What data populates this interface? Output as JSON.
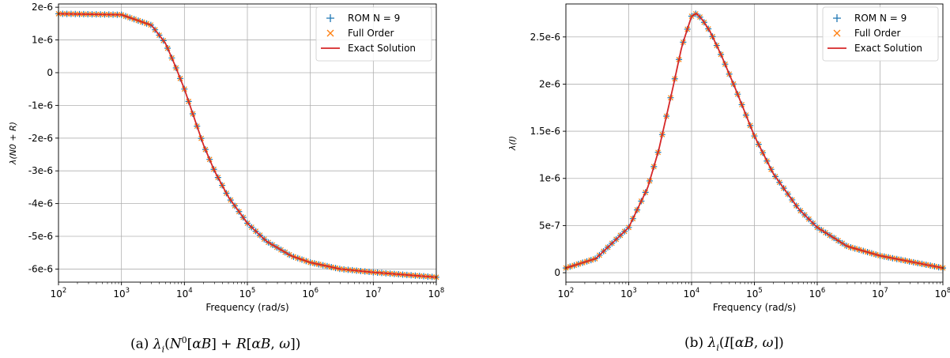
{
  "colors": {
    "rom": "#1f77b4",
    "full": "#ff7f0e",
    "exact": "#d62728"
  },
  "chart_data": [
    {
      "type": "line",
      "caption": "(a) λi(N0[αB] + R[αB, ω])",
      "xlabel": "Frequency (rad/s)",
      "ylabel": "λ(N0 + R)",
      "xscale": "log",
      "xlim": [
        100,
        100000000
      ],
      "ylim": [
        -6.4e-06,
        2.1e-06
      ],
      "grid": true,
      "legend_position": "top-right",
      "x_ticks": [
        {
          "value": 100,
          "base": "10",
          "exp": "2"
        },
        {
          "value": 1000,
          "base": "10",
          "exp": "3"
        },
        {
          "value": 10000,
          "base": "10",
          "exp": "4"
        },
        {
          "value": 100000,
          "base": "10",
          "exp": "5"
        },
        {
          "value": 1000000,
          "base": "10",
          "exp": "6"
        },
        {
          "value": 10000000,
          "base": "10",
          "exp": "7"
        },
        {
          "value": 100000000,
          "base": "10",
          "exp": "8"
        }
      ],
      "y_ticks": [
        {
          "value": 2e-06,
          "label": "2e-6"
        },
        {
          "value": 1e-06,
          "label": "1e-6"
        },
        {
          "value": 0,
          "label": "0"
        },
        {
          "value": -1e-06,
          "label": "-1e-6"
        },
        {
          "value": -2e-06,
          "label": "-2e-6"
        },
        {
          "value": -3e-06,
          "label": "-3e-6"
        },
        {
          "value": -4e-06,
          "label": "-4e-6"
        },
        {
          "value": -5e-06,
          "label": "-5e-6"
        },
        {
          "value": -6e-06,
          "label": "-6e-6"
        }
      ],
      "x": [
        100,
        1000,
        3000,
        5000,
        7000,
        10000,
        15000,
        20000,
        30000,
        50000,
        100000,
        200000,
        500000,
        1000000,
        3000000,
        10000000,
        100000000
      ],
      "series": [
        {
          "name": "ROM N = 9",
          "marker": "plus",
          "values": [
            1.8e-06,
            1.77e-06,
            1.45e-06,
            9e-07,
            2.5e-07,
            -5e-07,
            -1.5e-06,
            -2.2e-06,
            -3e-06,
            -3.8e-06,
            -4.6e-06,
            -5.15e-06,
            -5.6e-06,
            -5.8e-06,
            -6e-06,
            -6.1e-06,
            -6.25e-06
          ]
        },
        {
          "name": "Full Order",
          "marker": "x",
          "values": [
            1.8e-06,
            1.77e-06,
            1.45e-06,
            9e-07,
            2.5e-07,
            -5e-07,
            -1.5e-06,
            -2.2e-06,
            -3e-06,
            -3.8e-06,
            -4.6e-06,
            -5.15e-06,
            -5.6e-06,
            -5.8e-06,
            -6e-06,
            -6.1e-06,
            -6.25e-06
          ]
        },
        {
          "name": "Exact Solution",
          "marker": "line",
          "values": [
            1.8e-06,
            1.77e-06,
            1.45e-06,
            9e-07,
            2.5e-07,
            -5e-07,
            -1.5e-06,
            -2.2e-06,
            -3e-06,
            -3.8e-06,
            -4.6e-06,
            -5.15e-06,
            -5.6e-06,
            -5.8e-06,
            -6e-06,
            -6.1e-06,
            -6.25e-06
          ]
        }
      ]
    },
    {
      "type": "line",
      "caption": "(b) λi(I[αB, ω])",
      "xlabel": "Frequency (rad/s)",
      "ylabel": "λ(I)",
      "xscale": "log",
      "xlim": [
        100,
        100000000
      ],
      "ylim": [
        -1e-07,
        2.85e-06
      ],
      "grid": true,
      "legend_position": "top-right",
      "x_ticks": [
        {
          "value": 100,
          "base": "10",
          "exp": "2"
        },
        {
          "value": 1000,
          "base": "10",
          "exp": "3"
        },
        {
          "value": 10000,
          "base": "10",
          "exp": "4"
        },
        {
          "value": 100000,
          "base": "10",
          "exp": "5"
        },
        {
          "value": 1000000,
          "base": "10",
          "exp": "6"
        },
        {
          "value": 10000000,
          "base": "10",
          "exp": "7"
        },
        {
          "value": 100000000,
          "base": "10",
          "exp": "8"
        }
      ],
      "y_ticks": [
        {
          "value": 2.5e-06,
          "label": "2.5e-6"
        },
        {
          "value": 2e-06,
          "label": "2e-6"
        },
        {
          "value": 1.5e-06,
          "label": "1.5e-6"
        },
        {
          "value": 1e-06,
          "label": "1e-6"
        },
        {
          "value": 5e-07,
          "label": "5e-7"
        },
        {
          "value": 0,
          "label": "0"
        }
      ],
      "x": [
        100,
        300,
        1000,
        2000,
        3000,
        5000,
        7000,
        10000,
        12000,
        15000,
        20000,
        30000,
        50000,
        100000,
        200000,
        500000,
        1000000,
        3000000,
        10000000,
        100000000
      ],
      "series": [
        {
          "name": "ROM N = 9",
          "marker": "plus",
          "values": [
            5e-08,
            1.5e-07,
            4.8e-07,
            9e-07,
            1.3e-06,
            1.95e-06,
            2.4e-06,
            2.72e-06,
            2.75e-06,
            2.68e-06,
            2.55e-06,
            2.3e-06,
            1.95e-06,
            1.45e-06,
            1.05e-06,
            6.8e-07,
            4.8e-07,
            2.8e-07,
            1.8e-07,
            5e-08
          ]
        },
        {
          "name": "Full Order",
          "marker": "x",
          "values": [
            5e-08,
            1.5e-07,
            4.8e-07,
            9e-07,
            1.3e-06,
            1.95e-06,
            2.4e-06,
            2.72e-06,
            2.75e-06,
            2.68e-06,
            2.55e-06,
            2.3e-06,
            1.95e-06,
            1.45e-06,
            1.05e-06,
            6.8e-07,
            4.8e-07,
            2.8e-07,
            1.8e-07,
            5e-08
          ]
        },
        {
          "name": "Exact Solution",
          "marker": "line",
          "values": [
            5e-08,
            1.5e-07,
            4.8e-07,
            9e-07,
            1.3e-06,
            1.95e-06,
            2.4e-06,
            2.72e-06,
            2.75e-06,
            2.68e-06,
            2.55e-06,
            2.3e-06,
            1.95e-06,
            1.45e-06,
            1.05e-06,
            6.8e-07,
            4.8e-07,
            2.8e-07,
            1.8e-07,
            5e-08
          ]
        }
      ]
    }
  ]
}
